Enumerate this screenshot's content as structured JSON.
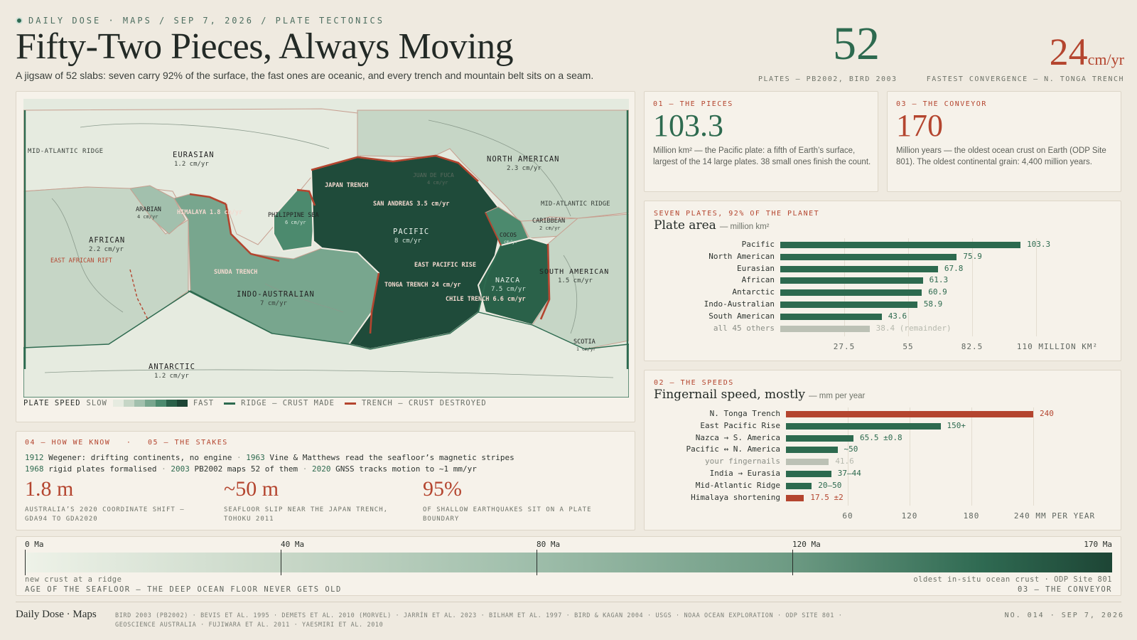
{
  "header": {
    "kicker": "DAILY DOSE · MAPS / SEP 7, 2026 / PLATE TECTONICS",
    "title": "Fifty-Two Pieces, Always Moving",
    "subtitle": "A jigsaw of 52 slabs: seven carry 92% of the surface, the fast ones are oceanic, and every trench and mountain belt sits on a seam.",
    "stat1_value": "52",
    "stat1_caption": "PLATES — PB2002, BIRD 2003",
    "stat2_value": "24",
    "stat2_unit": "cm/yr",
    "stat2_caption": "FASTEST CONVERGENCE — N. TONGA TRENCH"
  },
  "map": {
    "labels": {
      "mid_atlantic_w": "MID-ATLANTIC RIDGE",
      "eurasian": "EURASIAN",
      "eurasian_speed": "1.2 cm/yr",
      "north_american": "NORTH AMERICAN",
      "north_american_speed": "2.3 cm/yr",
      "juan_de_fuca": "JUAN DE FUCA",
      "juan_de_fuca_speed": "4 cm/yr",
      "japan_trench": "JAPAN TRENCH",
      "san_andreas": "SAN ANDREAS 3.5 cm/yr",
      "mid_atlantic_e": "MID-ATLANTIC RIDGE",
      "arabian": "ARABIAN",
      "arabian_speed": "4 cm/yr",
      "himalaya": "HIMALAYA 1.8 cm/yr",
      "philippine": "PHILIPPINE SEA",
      "philippine_speed": "6 cm/yr",
      "pacific": "PACIFIC",
      "pacific_speed": "8 cm/yr",
      "caribbean": "CARIBBEAN",
      "caribbean_speed": "2 cm/yr",
      "cocos": "COCOS",
      "cocos_speed": "cm/yr",
      "african": "AFRICAN",
      "african_speed": "2.2 cm/yr",
      "east_african": "EAST AFRICAN RIFT",
      "east_pacific": "EAST PACIFIC RISE",
      "sunda": "SUNDA TRENCH",
      "south_american": "SOUTH AMERICAN",
      "south_american_speed": "1.5 cm/yr",
      "nazca": "NAZCA",
      "nazca_speed": "7.5 cm/yr",
      "tonga": "TONGA TRENCH 24 cm/yr",
      "chile": "CHILE TRENCH 6.6 cm/yr",
      "indo_australian": "INDO-AUSTRALIAN",
      "indo_australian_speed": "7 cm/yr",
      "scotia": "SCOTIA",
      "scotia_speed": "1 cm/yr",
      "antarctic": "ANTARCTIC",
      "antarctic_speed": "1.2 cm/yr"
    },
    "legend": {
      "title": "PLATE SPEED",
      "slow": "SLOW",
      "fast": "FAST",
      "ridge": "RIDGE — CRUST MADE",
      "trench": "TRENCH — CRUST DESTROYED",
      "speed_colors": [
        "#e6ebe0",
        "#c6d6c6",
        "#a2c0ad",
        "#78a68e",
        "#4c8a6e",
        "#2a6149",
        "#1d4535"
      ]
    }
  },
  "how_we_know": {
    "label": "04 — HOW WE KNOW   ·   05 — THE STAKES",
    "line1": [
      {
        "year": "1912",
        "text": "Wegener: drifting continents, no engine"
      },
      {
        "year": "1963",
        "text": "Vine & Matthews read the seafloor’s magnetic stripes"
      }
    ],
    "line2": [
      {
        "year": "1968",
        "text": "rigid plates formalised"
      },
      {
        "year": "2003",
        "text": "PB2002 maps 52 of them"
      },
      {
        "year": "2020",
        "text": "GNSS tracks motion to ~1 mm/yr"
      }
    ],
    "stats": [
      {
        "value": "1.8 m",
        "caption": "AUSTRALIA’S 2020 COORDINATE SHIFT — GDA94 TO GDA2020"
      },
      {
        "value": "~50 m",
        "caption": "SEAFLOOR SLIP NEAR THE JAPAN TRENCH, TOHOKU 2011"
      },
      {
        "value": "95%",
        "caption": "OF SHALLOW EARTHQUAKES SIT ON A PLATE BOUNDARY"
      }
    ]
  },
  "pieces": {
    "label": "01 — THE PIECES",
    "value": "103.3",
    "text": "Million km² — the Pacific plate: a fifth of Earth’s surface, largest of the 14 large plates. 38 small ones finish the count."
  },
  "conveyor": {
    "label": "03 — THE CONVEYOR",
    "value": "170",
    "text": "Million years — the oldest ocean crust on Earth (ODP Site 801). The oldest continental grain: 4,400 million years."
  },
  "chart_data": [
    {
      "type": "bar",
      "orientation": "horizontal",
      "kicker": "SEVEN PLATES, 92% OF THE PLANET",
      "title": "Plate area",
      "subtitle": "— million km²",
      "categories": [
        "Pacific",
        "North American",
        "Eurasian",
        "African",
        "Antarctic",
        "Indo-Australian",
        "South American",
        "all 45 others"
      ],
      "values": [
        103.3,
        75.9,
        67.8,
        61.3,
        60.9,
        58.9,
        43.6,
        38.4
      ],
      "value_labels": [
        "103.3",
        "75.9",
        "67.8",
        "61.3",
        "60.9",
        "58.9",
        "43.6",
        "38.4 (remainder)"
      ],
      "xlim": [
        0,
        110
      ],
      "ticks": [
        27.5,
        55,
        82.5,
        110
      ],
      "tick_labels": [
        "27.5",
        "55",
        "82.5",
        "110 MILLION KM²"
      ],
      "colors": {
        "main": "#2d6a4f",
        "other": "#bcc1b5"
      }
    },
    {
      "type": "bar",
      "orientation": "horizontal",
      "kicker": "02 — THE SPEEDS",
      "title": "Fingernail speed, mostly",
      "subtitle": "— mm per year",
      "categories": [
        "N. Tonga Trench",
        "East Pacific Rise",
        "Nazca → S. America",
        "Pacific ↔ N. America",
        "your fingernails",
        "India → Eurasia",
        "Mid-Atlantic Ridge",
        "Himalaya shortening"
      ],
      "values": [
        240,
        150,
        65.5,
        50,
        41.6,
        44,
        25,
        17.5
      ],
      "value_labels": [
        "240",
        "150+",
        "65.5 ±0.8",
        "~50",
        "41.6",
        "37–44",
        "20–50",
        "17.5 ±2"
      ],
      "kinds": [
        "hot",
        "main",
        "main",
        "main",
        "ref",
        "main",
        "main",
        "hot"
      ],
      "xlim": [
        0,
        240
      ],
      "ticks": [
        60,
        120,
        180,
        240
      ],
      "tick_labels": [
        "60",
        "120",
        "180",
        "240 MM PER YEAR"
      ],
      "colors": {
        "main": "#2d6a4f",
        "hot": "#b4452f",
        "ref": "#bcc1b5"
      }
    }
  ],
  "timeline": {
    "ticks": [
      {
        "label": "0 Ma",
        "value": 0
      },
      {
        "label": "40 Ma",
        "value": 40
      },
      {
        "label": "80 Ma",
        "value": 80
      },
      {
        "label": "120 Ma",
        "value": 120
      },
      {
        "label": "170 Ma",
        "value": 170
      }
    ],
    "max": 170,
    "left_note": "new crust at a ridge",
    "title": "AGE OF THE SEAFLOOR — THE DEEP OCEAN FLOOR NEVER GETS OLD",
    "right_note": "oldest in-situ ocean crust · ODP Site 801",
    "right_label": "03 — THE CONVEYOR"
  },
  "footer": {
    "brand": "Daily Dose · Maps",
    "sources": "BIRD 2003 (PB2002) · BEVIS ET AL. 1995 · DEMETS ET AL. 2010 (MORVEL) · JARRÍN ET AL. 2023 · BILHAM ET AL. 1997 · BIRD & KAGAN 2004 · USGS · NOAA OCEAN EXPLORATION · ODP SITE 801 · GEOSCIENCE AUSTRALIA · FUJIWARA ET AL. 2011 · YAESMIRI ET AL. 2010",
    "issue": "NO. 014 · SEP 7, 2026"
  }
}
